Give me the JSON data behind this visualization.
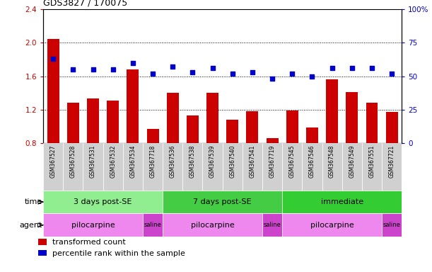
{
  "title": "GDS3827 / 170075",
  "samples": [
    "GSM367527",
    "GSM367528",
    "GSM367531",
    "GSM367532",
    "GSM367534",
    "GSM367718",
    "GSM367536",
    "GSM367538",
    "GSM367539",
    "GSM367540",
    "GSM367541",
    "GSM367719",
    "GSM367545",
    "GSM367546",
    "GSM367548",
    "GSM367549",
    "GSM367551",
    "GSM367721"
  ],
  "bar_values": [
    2.05,
    1.28,
    1.33,
    1.31,
    1.68,
    0.97,
    1.4,
    1.13,
    1.4,
    1.08,
    1.18,
    0.86,
    1.19,
    0.98,
    1.56,
    1.41,
    1.28,
    1.17
  ],
  "dot_values": [
    63,
    55,
    55,
    55,
    60,
    52,
    57,
    53,
    56,
    52,
    53,
    48,
    52,
    50,
    56,
    56,
    56,
    52
  ],
  "bar_color": "#cc0000",
  "dot_color": "#0000cc",
  "ylim_left": [
    0.8,
    2.4
  ],
  "ylim_right": [
    0,
    100
  ],
  "yticks_left": [
    0.8,
    1.2,
    1.6,
    2.0,
    2.4
  ],
  "yticks_right": [
    0,
    25,
    50,
    75,
    100
  ],
  "ytick_labels_left": [
    "0.8",
    "1.2",
    "1.6",
    "2.0",
    "2.4"
  ],
  "ytick_labels_right": [
    "0",
    "25",
    "50",
    "75",
    "100%"
  ],
  "hlines": [
    2.0,
    1.6,
    1.2
  ],
  "time_groups": [
    {
      "label": "3 days post-SE",
      "start": 0,
      "end": 5,
      "color": "#90ee90"
    },
    {
      "label": "7 days post-SE",
      "start": 6,
      "end": 11,
      "color": "#44cc44"
    },
    {
      "label": "immediate",
      "start": 12,
      "end": 17,
      "color": "#33cc33"
    }
  ],
  "agent_groups": [
    {
      "label": "pilocarpine",
      "start": 0,
      "end": 4,
      "color": "#ee88ee"
    },
    {
      "label": "saline",
      "start": 5,
      "end": 5,
      "color": "#cc44cc"
    },
    {
      "label": "pilocarpine",
      "start": 6,
      "end": 10,
      "color": "#ee88ee"
    },
    {
      "label": "saline",
      "start": 11,
      "end": 11,
      "color": "#cc44cc"
    },
    {
      "label": "pilocarpine",
      "start": 12,
      "end": 16,
      "color": "#ee88ee"
    },
    {
      "label": "saline",
      "start": 17,
      "end": 17,
      "color": "#cc44cc"
    }
  ],
  "legend_bar_label": "transformed count",
  "legend_dot_label": "percentile rank within the sample",
  "sample_bg": "#d0d0d0",
  "time_label": "time",
  "agent_label": "agent"
}
